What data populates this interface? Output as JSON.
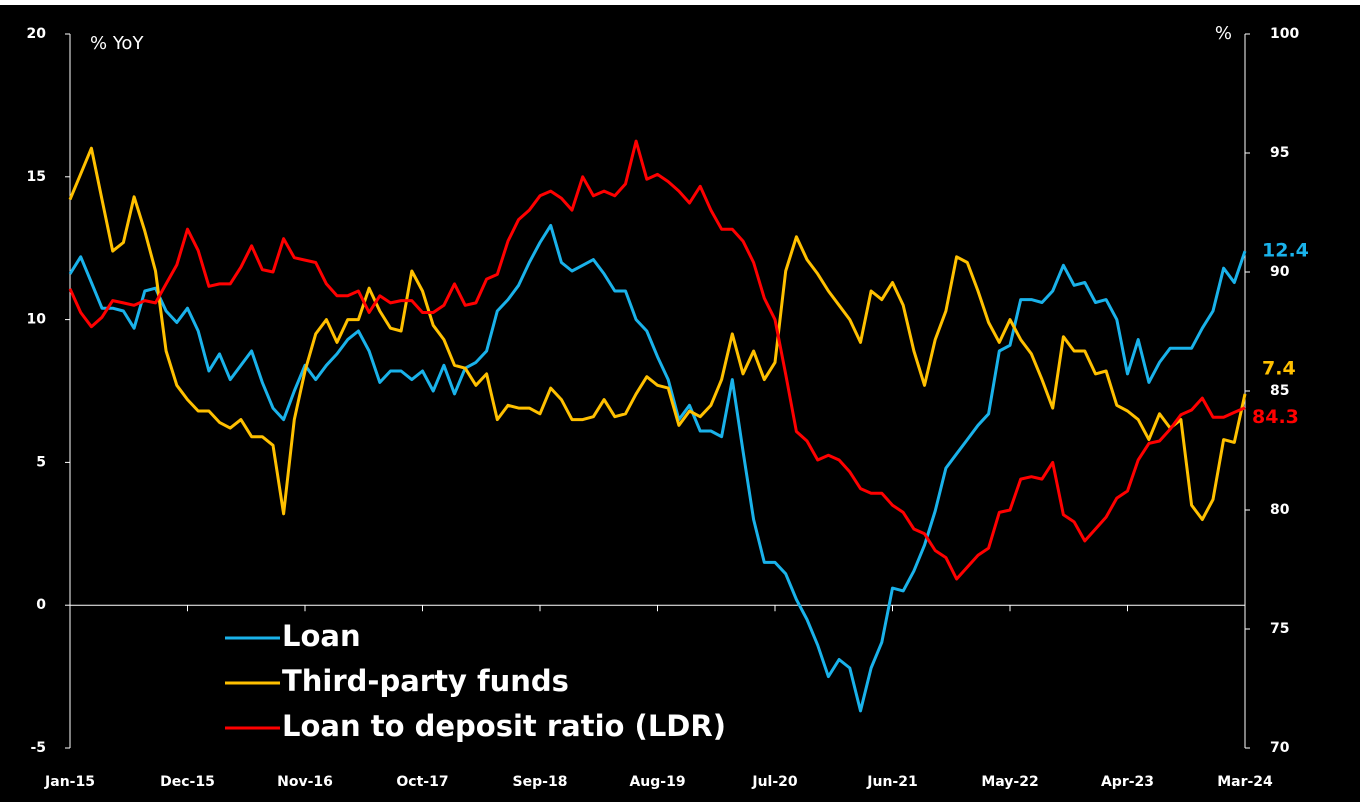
{
  "chart_data": {
    "type": "line",
    "y_label": "% YoY",
    "y2_label": "%",
    "categories": [
      "Jan-15",
      null,
      null,
      null,
      null,
      null,
      null,
      null,
      null,
      null,
      null,
      "Dec-15",
      null,
      null,
      null,
      null,
      null,
      null,
      null,
      null,
      null,
      null,
      "Nov-16",
      null,
      null,
      null,
      null,
      null,
      null,
      null,
      null,
      null,
      null,
      "Oct-17",
      null,
      null,
      null,
      null,
      null,
      null,
      null,
      null,
      null,
      null,
      "Sep-18",
      null,
      null,
      null,
      null,
      null,
      null,
      null,
      null,
      null,
      null,
      "Aug-19",
      null,
      null,
      null,
      null,
      null,
      null,
      null,
      null,
      null,
      null,
      "Jul-20",
      null,
      null,
      null,
      null,
      null,
      null,
      null,
      null,
      null,
      null,
      "Jun-21",
      null,
      null,
      null,
      null,
      null,
      null,
      null,
      null,
      null,
      null,
      "May-22",
      null,
      null,
      null,
      null,
      null,
      null,
      null,
      null,
      null,
      null,
      "Apr-23",
      null,
      null,
      null,
      null,
      null,
      null,
      null,
      null,
      null,
      null,
      "Mar-24"
    ],
    "ylim": [
      -5,
      20
    ],
    "yticks": [
      -5,
      0,
      5,
      10,
      15,
      20
    ],
    "y2lim": [
      70,
      100
    ],
    "y2ticks": [
      70,
      75,
      80,
      85,
      90,
      95,
      100
    ],
    "legend": "lower left",
    "series": [
      {
        "name": "Loan",
        "color": "#1ab2ea",
        "values": [
          11.6,
          12.2,
          11.3,
          10.4,
          10.4,
          10.3,
          9.7,
          11.0,
          11.1,
          10.3,
          9.9,
          10.4,
          9.6,
          8.2,
          8.8,
          7.9,
          8.4,
          8.9,
          7.8,
          6.9,
          6.5,
          7.5,
          8.4,
          7.9,
          8.4,
          8.8,
          9.3,
          9.6,
          8.9,
          7.8,
          8.2,
          8.2,
          7.9,
          8.2,
          7.5,
          8.4,
          7.4,
          8.3,
          8.5,
          8.9,
          10.3,
          10.7,
          11.2,
          12.0,
          12.7,
          13.3,
          12.0,
          11.7,
          11.9,
          12.1,
          11.6,
          11.0,
          11.0,
          10.0,
          9.6,
          8.7,
          7.9,
          6.5,
          7.0,
          6.1,
          6.1,
          5.9,
          7.9,
          5.4,
          3.0,
          1.5,
          1.5,
          1.1,
          0.2,
          -0.5,
          -1.4,
          -2.5,
          -1.9,
          -2.2,
          -3.7,
          -2.2,
          -1.3,
          0.6,
          0.5,
          1.2,
          2.1,
          3.3,
          4.8,
          5.3,
          5.8,
          6.3,
          6.7,
          8.9,
          9.1,
          10.7,
          10.7,
          10.6,
          11.0,
          11.9,
          11.2,
          11.3,
          10.6,
          10.7,
          10.0,
          8.1,
          9.3,
          7.8,
          8.5,
          9.0,
          9.0,
          9.0,
          9.7,
          10.3,
          11.8,
          11.3,
          12.4
        ]
      },
      {
        "name": "Third-party funds",
        "color": "#ffc000",
        "values": [
          14.2,
          15.1,
          16.0,
          14.2,
          12.4,
          12.7,
          14.3,
          13.1,
          11.7,
          8.9,
          7.7,
          7.2,
          6.8,
          6.8,
          6.4,
          6.2,
          6.5,
          5.9,
          5.9,
          5.6,
          3.2,
          6.5,
          8.2,
          9.5,
          10.0,
          9.2,
          10.0,
          10.0,
          11.1,
          10.3,
          9.7,
          9.6,
          11.7,
          11.0,
          9.8,
          9.3,
          8.4,
          8.3,
          7.7,
          8.1,
          6.5,
          7.0,
          6.9,
          6.9,
          6.7,
          7.6,
          7.2,
          6.5,
          6.5,
          6.6,
          7.2,
          6.6,
          6.7,
          7.4,
          8.0,
          7.7,
          7.6,
          6.3,
          6.8,
          6.6,
          7.0,
          7.9,
          9.5,
          8.1,
          8.9,
          7.9,
          8.5,
          11.7,
          12.9,
          12.1,
          11.6,
          11.0,
          10.5,
          10.0,
          9.2,
          11.0,
          10.7,
          11.3,
          10.5,
          8.9,
          7.7,
          9.3,
          10.3,
          12.2,
          12.0,
          11.0,
          9.9,
          9.2,
          10.0,
          9.3,
          8.8,
          7.9,
          6.9,
          9.4,
          8.9,
          8.9,
          8.1,
          8.2,
          7.0,
          6.8,
          6.5,
          5.8,
          6.7,
          6.2,
          6.5,
          3.5,
          3.0,
          3.7,
          5.8,
          5.7,
          7.4
        ]
      },
      {
        "name": "Loan to deposit ratio (LDR)",
        "color": "#ff0000",
        "axis": "y2",
        "values": [
          89.3,
          88.3,
          87.7,
          88.1,
          88.8,
          88.7,
          88.6,
          88.8,
          88.7,
          89.5,
          90.3,
          91.8,
          90.9,
          89.4,
          89.5,
          89.5,
          90.2,
          91.1,
          90.1,
          90.0,
          91.4,
          90.6,
          90.5,
          90.4,
          89.5,
          89.0,
          89.0,
          89.2,
          88.3,
          89.0,
          88.7,
          88.8,
          88.8,
          88.3,
          88.3,
          88.6,
          89.5,
          88.6,
          88.7,
          89.7,
          89.9,
          91.3,
          92.2,
          92.6,
          93.2,
          93.4,
          93.1,
          92.6,
          94.0,
          93.2,
          93.4,
          93.2,
          93.7,
          95.5,
          93.9,
          94.1,
          93.8,
          93.4,
          92.9,
          93.6,
          92.6,
          91.8,
          91.8,
          91.3,
          90.4,
          88.9,
          88.0,
          85.7,
          83.3,
          82.9,
          82.1,
          82.3,
          82.1,
          81.6,
          80.9,
          80.7,
          80.7,
          80.2,
          79.9,
          79.2,
          79.0,
          78.3,
          78.0,
          77.1,
          77.6,
          78.1,
          78.4,
          79.9,
          80.0,
          81.3,
          81.4,
          81.3,
          82.0,
          79.8,
          79.5,
          78.7,
          79.2,
          79.7,
          80.5,
          80.8,
          82.1,
          82.8,
          82.9,
          83.4,
          84.0,
          84.2,
          84.7,
          83.9,
          83.9,
          84.1,
          84.3
        ]
      }
    ]
  }
}
